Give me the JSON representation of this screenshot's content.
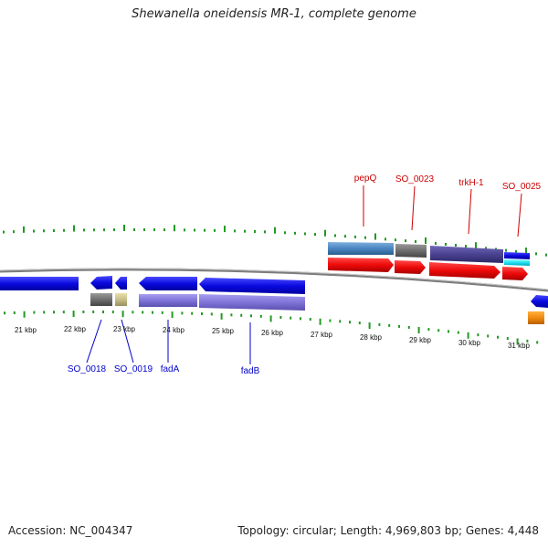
{
  "title": "Shewanella oneidensis MR-1, complete genome",
  "footer": {
    "accession": "Accession: NC_004347",
    "summary": "Topology: circular; Length: 4,969,803 bp; Genes: 4,448"
  },
  "colors": {
    "forward_label": "#cc0000",
    "reverse_label": "#0000cc",
    "tick": "#229922",
    "backbone": "#808080"
  },
  "kbp_labels": [
    "21 kbp",
    "22 kbp",
    "23 kbp",
    "24 kbp",
    "25 kbp",
    "26 kbp",
    "27 kbp",
    "28 kbp",
    "29 kbp",
    "30 kbp",
    "31 kbp"
  ],
  "forward_gene_labels": [
    "pepQ",
    "SO_0023",
    "trkH-1",
    "SO_0025"
  ],
  "reverse_gene_labels": [
    "SO_0018",
    "SO_0019",
    "fadA",
    "fadB"
  ]
}
